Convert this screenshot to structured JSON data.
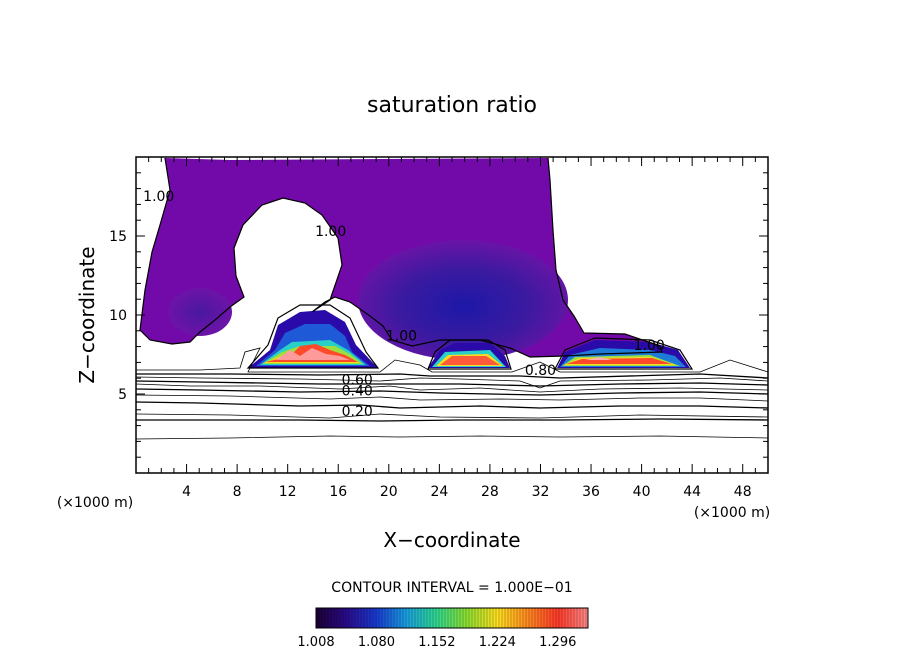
{
  "chart_data": {
    "type": "contour",
    "title": "saturation ratio",
    "xlabel": "X−coordinate",
    "ylabel": "Z−coordinate",
    "x_unit_left": "(×1000 m)",
    "x_unit_right": "(×1000 m)",
    "xlim": [
      0,
      50
    ],
    "ylim": [
      0,
      20
    ],
    "x_ticks": [
      4,
      8,
      12,
      16,
      20,
      24,
      28,
      32,
      36,
      40,
      44,
      48
    ],
    "y_ticks": [
      5,
      10,
      15
    ],
    "x_tick_labels": [
      "4",
      "8",
      "12",
      "16",
      "20",
      "24",
      "28",
      "32",
      "36",
      "40",
      "44",
      "48"
    ],
    "y_tick_labels": [
      "5",
      "10",
      "15"
    ],
    "contour_interval_text": "CONTOUR INTERVAL = 1.000E−01",
    "colorbar": {
      "min": 1.008,
      "max": 1.332,
      "tick_labels": [
        "1.008",
        "1.080",
        "1.152",
        "1.224",
        "1.296"
      ],
      "colors": [
        "#1c0033",
        "#2a0a8c",
        "#1a3ad0",
        "#1aa0e0",
        "#30d890",
        "#8ee030",
        "#ffe020",
        "#ff8a20",
        "#ff3a2a",
        "#ff8a8a"
      ]
    },
    "contour_labels": [
      {
        "text": "1.00",
        "x": 1.8,
        "y": 17.2
      },
      {
        "text": "1.00",
        "x": 15.4,
        "y": 15.0
      },
      {
        "text": "1.00",
        "x": 21.0,
        "y": 8.4
      },
      {
        "text": "1.00",
        "x": 40.6,
        "y": 7.8
      },
      {
        "text": "0.80",
        "x": 32.0,
        "y": 6.2
      },
      {
        "text": "0.60",
        "x": 17.5,
        "y": 5.6
      },
      {
        "text": "0.40",
        "x": 17.5,
        "y": 4.9
      },
      {
        "text": "0.20",
        "x": 17.5,
        "y": 3.6
      }
    ]
  }
}
